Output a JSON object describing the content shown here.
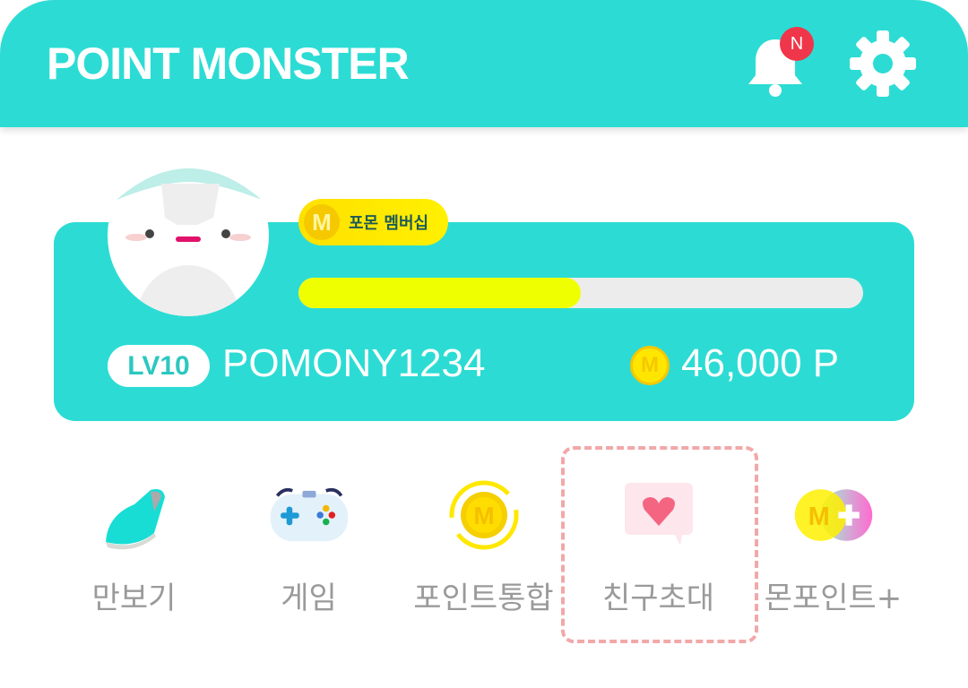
{
  "header": {
    "title": "POINT MONSTER",
    "notification_badge": "N"
  },
  "profile": {
    "membership_label": "포몬 멤버십",
    "membership_coin": "M",
    "level": "LV10",
    "username": "POMONY1234",
    "points": "46,000 P",
    "points_coin": "M",
    "progress_percent": 50
  },
  "colors": {
    "brand": "#2cdcd4",
    "progress": "#f0ff00",
    "badge": "#f0364a"
  },
  "menu": [
    {
      "label": "만보기",
      "icon": "sneaker-icon"
    },
    {
      "label": "게임",
      "icon": "gamepad-icon"
    },
    {
      "label": "포인트통합",
      "icon": "coin-sync-icon"
    },
    {
      "label": "친구초대",
      "icon": "heart-message-icon",
      "highlighted": true
    },
    {
      "label": "몬포인트+",
      "icon": "m-plus-icon"
    }
  ]
}
